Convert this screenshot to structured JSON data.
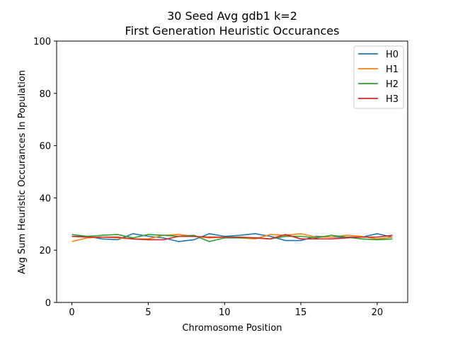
{
  "chart_data": {
    "type": "line",
    "title_lines": [
      "30 Seed Avg gdb1 k=2",
      "First Generation Heuristic Occurances"
    ],
    "xlabel": "Chromosome Position",
    "ylabel": "Avg Sum Heuristic Occurances In Population",
    "xlim": [
      -1,
      22
    ],
    "ylim": [
      0,
      100
    ],
    "xticks": [
      0,
      5,
      10,
      15,
      20
    ],
    "yticks": [
      0,
      20,
      40,
      60,
      80,
      100
    ],
    "legend_position": "top-right",
    "grid": false,
    "x": [
      0,
      1,
      2,
      3,
      4,
      5,
      6,
      7,
      8,
      9,
      10,
      11,
      12,
      13,
      14,
      15,
      16,
      17,
      18,
      19,
      20,
      21
    ],
    "series": [
      {
        "name": "H0",
        "color": "#1f77b4",
        "values": [
          25.3,
          25.3,
          24.3,
          24.0,
          26.3,
          25.3,
          24.7,
          23.3,
          24.0,
          26.3,
          25.3,
          25.7,
          26.3,
          25.3,
          23.7,
          23.7,
          25.3,
          25.0,
          25.0,
          25.0,
          26.3,
          25.0
        ]
      },
      {
        "name": "H1",
        "color": "#ff7f0e",
        "values": [
          23.3,
          24.7,
          25.0,
          24.7,
          24.3,
          24.3,
          25.7,
          26.0,
          25.3,
          24.7,
          25.0,
          24.7,
          24.3,
          26.0,
          25.7,
          26.3,
          25.0,
          25.0,
          25.7,
          25.3,
          24.3,
          25.0
        ]
      },
      {
        "name": "H2",
        "color": "#2ca02c",
        "values": [
          26.0,
          25.3,
          25.7,
          26.0,
          24.7,
          26.0,
          25.7,
          25.3,
          25.7,
          23.3,
          24.7,
          24.7,
          24.7,
          24.3,
          25.3,
          25.3,
          24.7,
          25.7,
          25.0,
          24.3,
          24.0,
          24.3
        ]
      },
      {
        "name": "H3",
        "color": "#d62728",
        "values": [
          25.3,
          25.0,
          25.0,
          25.0,
          24.3,
          24.0,
          24.0,
          25.3,
          25.3,
          25.0,
          25.0,
          25.0,
          24.7,
          24.3,
          26.0,
          24.3,
          24.3,
          24.3,
          24.7,
          25.0,
          25.0,
          25.7
        ]
      }
    ]
  }
}
